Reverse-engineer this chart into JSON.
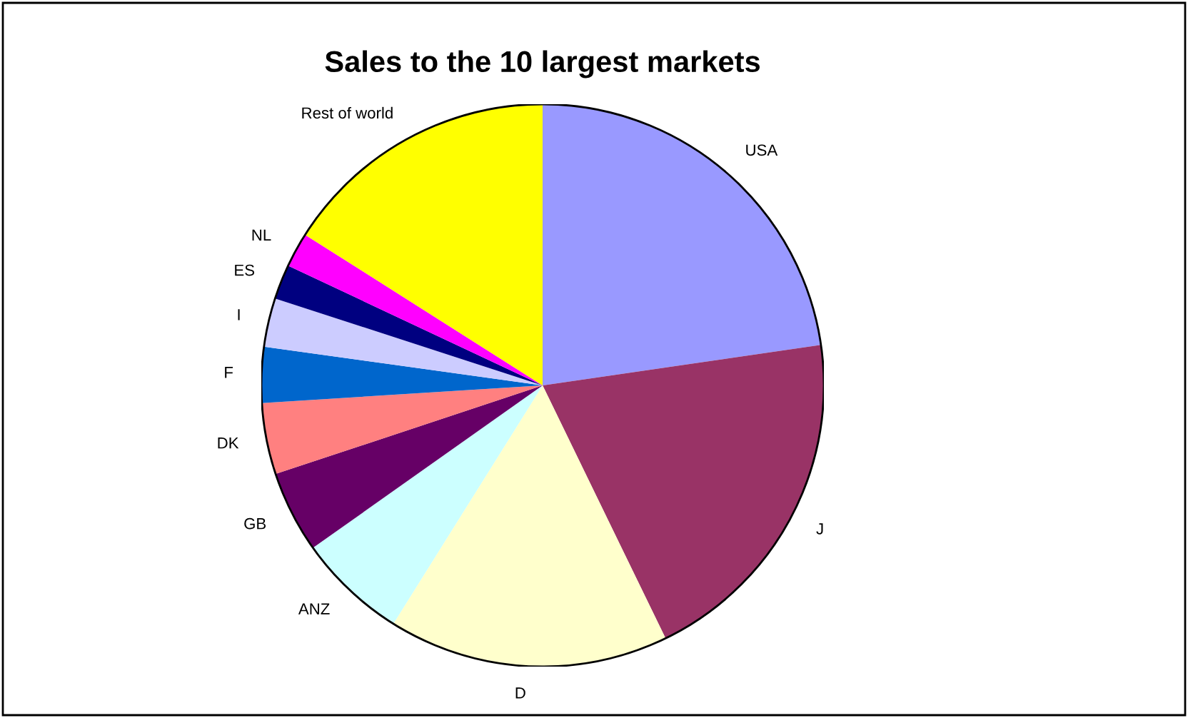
{
  "chart_data": {
    "type": "pie",
    "title": "Sales to the 10 largest markets",
    "categories": [
      "USA",
      "J",
      "D",
      "ANZ",
      "GB",
      "DK",
      "F",
      "I",
      "ES",
      "NL",
      "Rest of world"
    ],
    "values": [
      22.7,
      20.1,
      16.1,
      6.3,
      4.7,
      4.1,
      3.2,
      2.8,
      2.0,
      2.0,
      16.0
    ],
    "colors": [
      "#9999ff",
      "#993366",
      "#ffffcc",
      "#ccffff",
      "#660066",
      "#ff8080",
      "#0066cc",
      "#ccccff",
      "#000080",
      "#ff00ff",
      "#ffff00"
    ]
  }
}
